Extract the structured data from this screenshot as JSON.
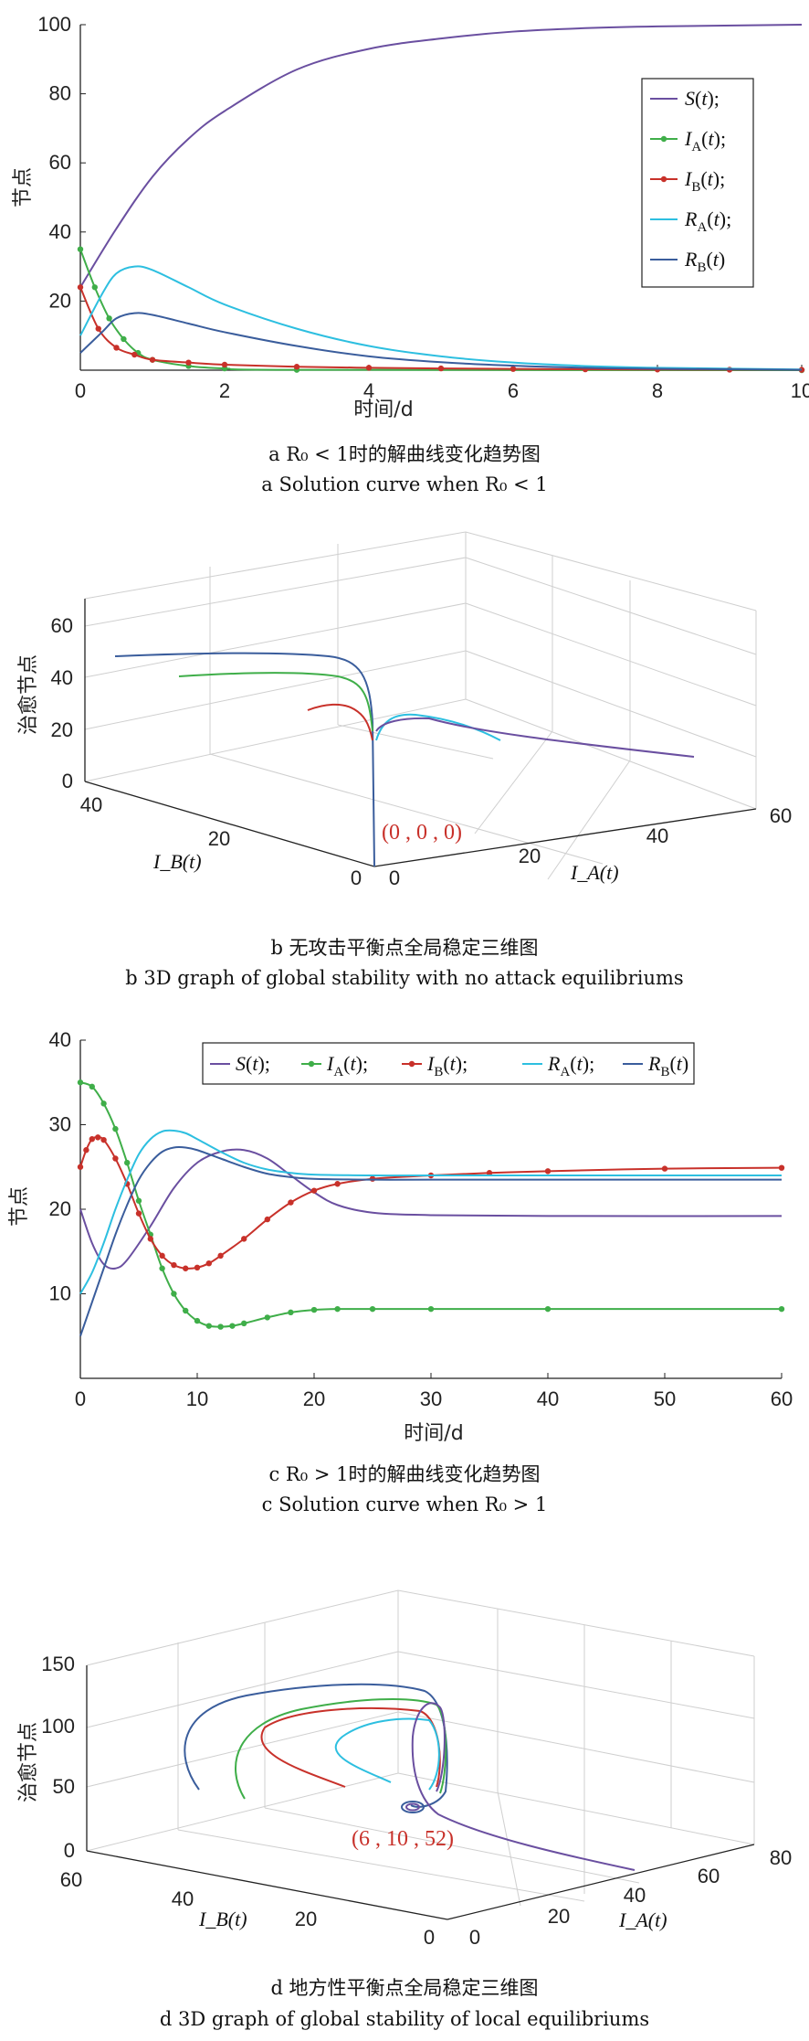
{
  "colors": {
    "S": "#6a4fa0",
    "IA": "#3fae49",
    "IB": "#c8312a",
    "RA": "#2dbfe0",
    "RB": "#3a5d9c",
    "annotation": "#c8312a",
    "axis": "#222222",
    "grid": "#cfcfcf"
  },
  "legend_a": [
    "S(t);",
    "I_A(t);",
    "I_B(t);",
    "R_A(t);",
    "R_B(t)"
  ],
  "legend_c": [
    "S(t);",
    "I_A(t);",
    "I_B(t);",
    "R_A(t);",
    "R_B(t)"
  ],
  "captions": {
    "a_cn": "a  R₀ < 1时的解曲线变化趋势图",
    "a_en": "a  Solution curve when R₀ < 1",
    "b_cn": "b  无攻击平衡点全局稳定三维图",
    "b_en": "b  3D graph of global stability with no attack equilibriums",
    "c_cn": "c  R₀ > 1时的解曲线变化趋势图",
    "c_en": "c  Solution curve when R₀ > 1",
    "d_cn": "d  地方性平衡点全局稳定三维图",
    "d_en": "d  3D graph of global stability of local equilibriums"
  },
  "chart_data": [
    {
      "id": "a",
      "type": "line",
      "xlabel": "时间/d",
      "ylabel": "节点",
      "xlim": [
        0,
        10
      ],
      "ylim": [
        0,
        100
      ],
      "xticks": [
        0,
        2,
        4,
        6,
        8,
        10
      ],
      "yticks": [
        20,
        40,
        60,
        80,
        100
      ],
      "legend_position": "right",
      "series": [
        {
          "name": "S(t)",
          "color_key": "S",
          "x": [
            0,
            0.5,
            1,
            1.5,
            2,
            3,
            4,
            5,
            6,
            7,
            8,
            10
          ],
          "y": [
            24,
            41,
            56,
            67,
            75,
            87,
            93,
            96,
            98,
            99,
            99.5,
            100
          ]
        },
        {
          "name": "I_A(t)",
          "color_key": "IA",
          "x": [
            0,
            0.2,
            0.4,
            0.6,
            0.8,
            1,
            1.5,
            2,
            3,
            10
          ],
          "y": [
            35,
            24,
            15,
            9,
            5,
            3,
            1.2,
            0.5,
            0.1,
            0
          ],
          "markers": true
        },
        {
          "name": "I_B(t)",
          "color_key": "IB",
          "x": [
            0,
            0.25,
            0.5,
            0.75,
            1,
            1.5,
            2,
            3,
            4,
            5,
            6,
            7,
            8,
            9,
            10
          ],
          "y": [
            24,
            12,
            6.5,
            4.5,
            3,
            2.2,
            1.6,
            1,
            0.7,
            0.5,
            0.35,
            0.25,
            0.2,
            0.15,
            0.1
          ],
          "markers": true
        },
        {
          "name": "R_A(t)",
          "color_key": "RA",
          "x": [
            0,
            0.3,
            0.5,
            0.75,
            1,
            1.5,
            2,
            3,
            4,
            5,
            6,
            7,
            8,
            10
          ],
          "y": [
            10,
            22,
            28,
            30,
            29,
            24,
            19,
            12,
            7,
            4,
            2.2,
            1.2,
            0.7,
            0.2
          ]
        },
        {
          "name": "R_B(t)",
          "color_key": "RB",
          "x": [
            0,
            0.3,
            0.5,
            0.75,
            1,
            1.5,
            2,
            3,
            4,
            5,
            6,
            7,
            8,
            10
          ],
          "y": [
            5,
            11,
            15,
            16.5,
            16,
            13.5,
            11,
            7,
            4,
            2.3,
            1.3,
            0.7,
            0.4,
            0.1
          ]
        }
      ]
    },
    {
      "id": "b",
      "type": "line",
      "view": "3d",
      "xlabel": "I_A(t)",
      "ylabel": "I_B(t)",
      "zlabel": "治愈节点",
      "xticks": [
        0,
        20,
        40,
        60
      ],
      "yticks": [
        0,
        20,
        40
      ],
      "zticks": [
        0,
        20,
        40,
        60
      ],
      "annotation": "(0 , 0 , 0)"
    },
    {
      "id": "c",
      "type": "line",
      "xlabel": "时间/d",
      "ylabel": "节点",
      "xlim": [
        0,
        60
      ],
      "ylim": [
        0,
        40
      ],
      "xticks": [
        0,
        10,
        20,
        30,
        40,
        50,
        60
      ],
      "yticks": [
        10,
        20,
        30,
        40
      ],
      "legend_position": "top",
      "series": [
        {
          "name": "S(t)",
          "color_key": "S",
          "x": [
            0,
            1,
            2,
            3,
            4,
            6,
            8,
            10,
            12,
            14,
            16,
            18,
            20,
            22,
            25,
            30,
            40,
            60
          ],
          "y": [
            20,
            16,
            13.5,
            13,
            14,
            18,
            22.5,
            25.5,
            26.8,
            27,
            26,
            24,
            22,
            20.5,
            19.6,
            19.3,
            19.2,
            19.2
          ]
        },
        {
          "name": "I_A(t)",
          "color_key": "IA",
          "x": [
            0,
            1,
            2,
            3,
            4,
            5,
            6,
            7,
            8,
            9,
            10,
            11,
            12,
            13,
            14,
            16,
            18,
            20,
            22,
            25,
            30,
            40,
            60
          ],
          "y": [
            35,
            34.5,
            32.5,
            29.5,
            25.5,
            21,
            17,
            13,
            10,
            8,
            6.8,
            6.2,
            6.1,
            6.2,
            6.5,
            7.2,
            7.8,
            8.1,
            8.2,
            8.2,
            8.2,
            8.2,
            8.2
          ],
          "markers": true
        },
        {
          "name": "I_B(t)",
          "color_key": "IB",
          "x": [
            0,
            0.5,
            1,
            1.5,
            2,
            3,
            4,
            5,
            6,
            7,
            8,
            9,
            10,
            11,
            12,
            14,
            16,
            18,
            20,
            22,
            25,
            30,
            35,
            40,
            50,
            60
          ],
          "y": [
            25,
            27,
            28.3,
            28.5,
            28.2,
            26,
            23,
            19.5,
            16.5,
            14.5,
            13.4,
            13,
            13.1,
            13.6,
            14.5,
            16.5,
            18.8,
            20.8,
            22.2,
            23,
            23.6,
            24,
            24.3,
            24.5,
            24.8,
            24.9
          ],
          "markers": true
        },
        {
          "name": "R_A(t)",
          "color_key": "RA",
          "x": [
            0,
            1,
            2,
            3,
            4,
            5,
            6,
            7,
            8,
            9,
            10,
            12,
            14,
            16,
            18,
            20,
            25,
            30,
            40,
            60
          ],
          "y": [
            10,
            12.5,
            16,
            20,
            23.5,
            26.5,
            28.3,
            29.2,
            29.3,
            29,
            28.3,
            26.8,
            25.5,
            24.7,
            24.3,
            24.1,
            24,
            24,
            24,
            24
          ]
        },
        {
          "name": "R_B(t)",
          "color_key": "RB",
          "x": [
            0,
            1,
            2,
            3,
            4,
            5,
            6,
            7,
            8,
            9,
            10,
            12,
            14,
            16,
            18,
            20,
            25,
            30,
            40,
            60
          ],
          "y": [
            5,
            9,
            13,
            17,
            20.5,
            23.5,
            25.5,
            26.8,
            27.3,
            27.3,
            27,
            26,
            25,
            24.2,
            23.8,
            23.6,
            23.5,
            23.5,
            23.5,
            23.5
          ]
        }
      ]
    },
    {
      "id": "d",
      "type": "line",
      "view": "3d",
      "xlabel": "I_A(t)",
      "ylabel": "I_B(t)",
      "zlabel": "治愈节点",
      "xticks": [
        0,
        20,
        40,
        60,
        80
      ],
      "yticks": [
        0,
        20,
        40,
        60
      ],
      "zticks": [
        0,
        50,
        100,
        150
      ],
      "annotation": "(6 , 10 , 52)"
    }
  ]
}
